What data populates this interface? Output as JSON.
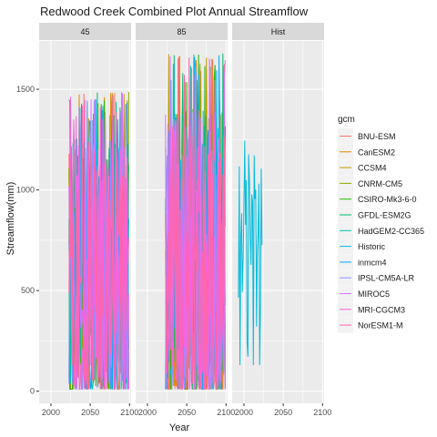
{
  "chart_data": {
    "type": "line",
    "title": "Redwood Creek Combined Plot Annual Streamflow",
    "xlabel": "Year",
    "ylabel": "Streamflow(mm)",
    "xlim": [
      1985,
      2102
    ],
    "ylim": [
      -60,
      1740
    ],
    "x_ticks": [
      "2000",
      "2050",
      "2100"
    ],
    "y_ticks": [
      "0",
      "500",
      "1000",
      "1500"
    ],
    "grid": true,
    "legend_position": "right",
    "legend_title": "gcm",
    "facets": [
      "45",
      "85",
      "Hist"
    ],
    "series": [
      {
        "name": "BNU-ESM",
        "color": "#F8766D"
      },
      {
        "name": "CanESM2",
        "color": "#E18A00"
      },
      {
        "name": "CCSM4",
        "color": "#BE9C00"
      },
      {
        "name": "CNRM-CM5",
        "color": "#8CAB00"
      },
      {
        "name": "CSIRO-Mk3-6-0",
        "color": "#24B700"
      },
      {
        "name": "GFDL-ESM2G",
        "color": "#00BE70"
      },
      {
        "name": "HadGEM2-CC365",
        "color": "#00C1AB"
      },
      {
        "name": "Historic",
        "color": "#00BBDA"
      },
      {
        "name": "inmcm4",
        "color": "#00ACFC"
      },
      {
        "name": "IPSL-CM5A-LR",
        "color": "#8B93FF"
      },
      {
        "name": "MIROC5",
        "color": "#D575FE"
      },
      {
        "name": "MRI-CGCM3",
        "color": "#F962DD"
      },
      {
        "name": "NorESM1-M",
        "color": "#FF65AC"
      }
    ],
    "panel_summary": {
      "45": {
        "years": [
          2023,
          2099
        ],
        "min": 10,
        "max": 1490,
        "mean": 560
      },
      "85": {
        "years": [
          2023,
          2099
        ],
        "min": 10,
        "max": 1680,
        "mean": 600
      },
      "Hist": {
        "years": [
          1993,
          2023
        ],
        "min": 130,
        "max": 1480,
        "mean": 650,
        "series": "Historic"
      }
    }
  }
}
